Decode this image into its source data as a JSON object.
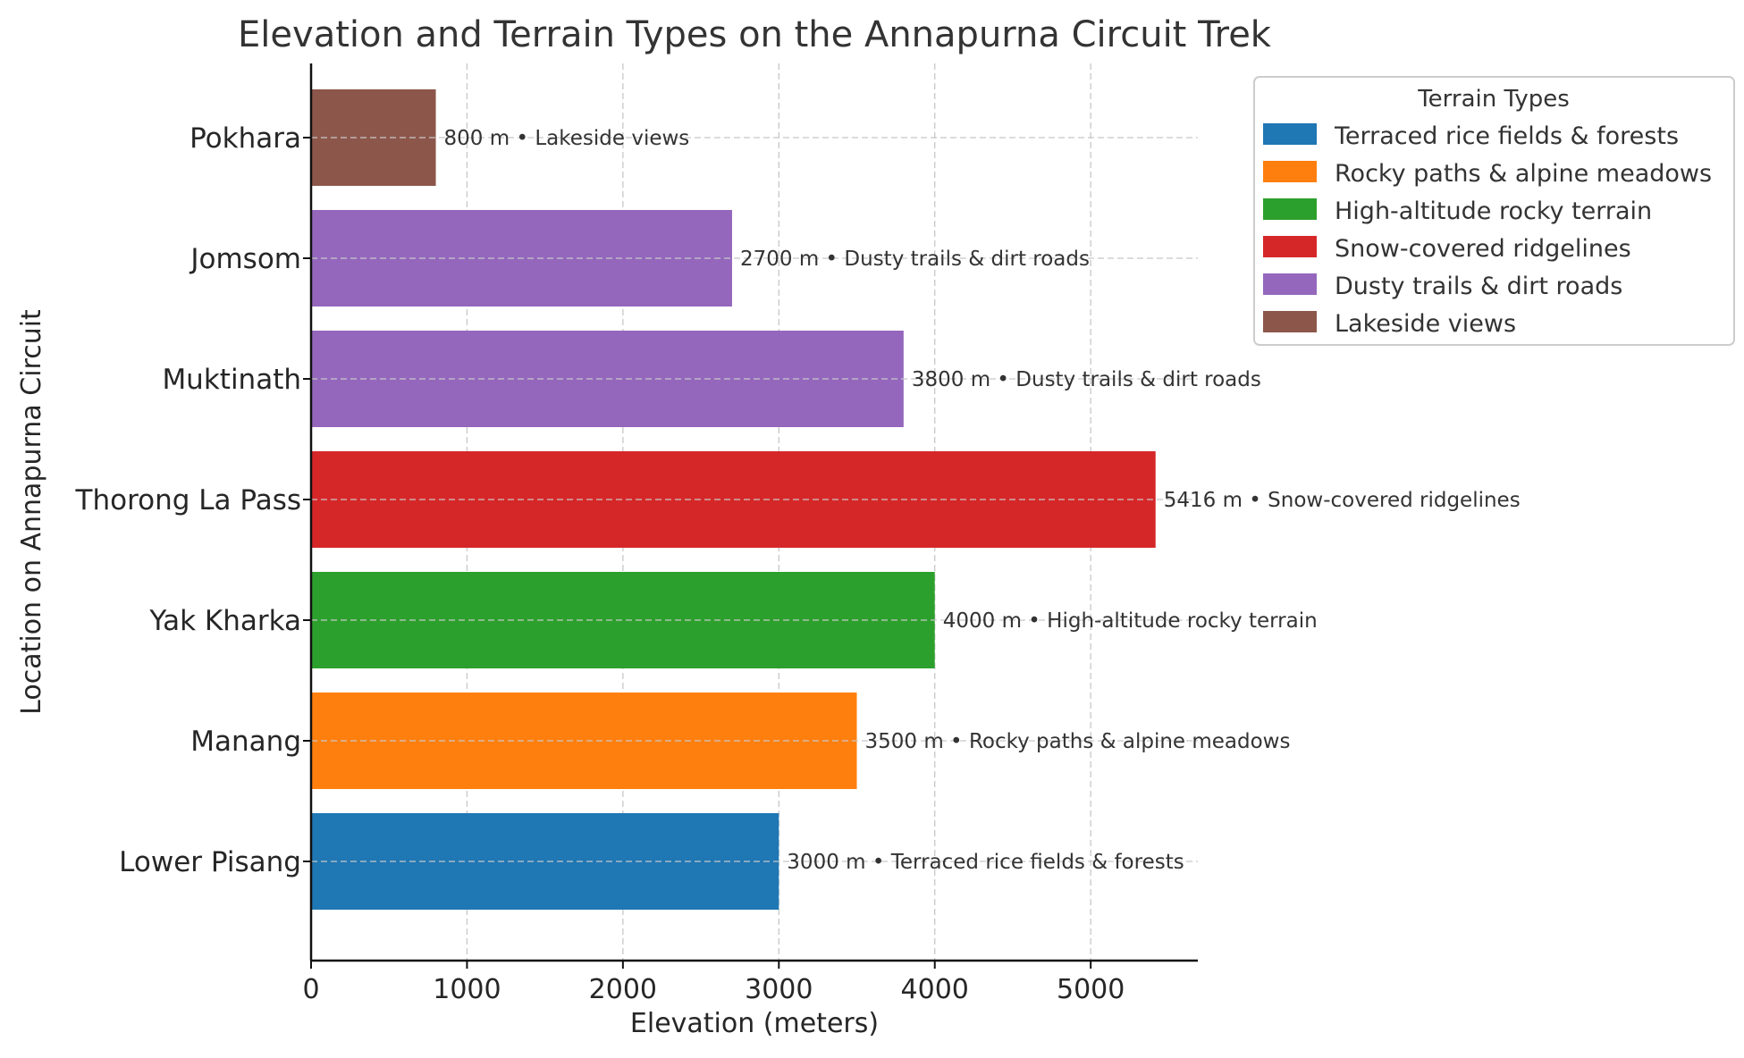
{
  "chart_data": {
    "type": "bar",
    "orientation": "horizontal",
    "title": "Elevation and Terrain Types on the Annapurna Circuit Trek",
    "xlabel": "Elevation (meters)",
    "ylabel": "Location on Annapurna Circuit",
    "xlim": [
      0,
      5687
    ],
    "xticks": [
      "0",
      "1000",
      "2000",
      "3000",
      "4000",
      "5000"
    ],
    "grid": true,
    "legend_title": "Terrain Types",
    "legend_position": "upper-right outside",
    "categories": [
      "Lower Pisang",
      "Manang",
      "Yak Kharka",
      "Thorong La Pass",
      "Muktinath",
      "Jomsom",
      "Pokhara"
    ],
    "values": [
      3000,
      3500,
      4000,
      5416,
      3800,
      2700,
      800
    ],
    "terrain": [
      "Terraced rice fields & forests",
      "Rocky paths & alpine meadows",
      "High-altitude rocky terrain",
      "Snow-covered ridgelines",
      "Dusty trails & dirt roads",
      "Dusty trails & dirt roads",
      "Lakeside views"
    ],
    "bar_labels": [
      "3000 m • Terraced rice fields & forests",
      "3500 m • Rocky paths & alpine meadows",
      "4000 m • High-altitude rocky terrain",
      "5416 m • Snow-covered ridgelines",
      "3800 m • Dusty trails & dirt roads",
      "2700 m • Dusty trails & dirt roads",
      "800 m • Lakeside views"
    ],
    "legend": [
      {
        "label": "Terraced rice fields & forests",
        "color": "#1f77b4"
      },
      {
        "label": "Rocky paths & alpine meadows",
        "color": "#ff7f0e"
      },
      {
        "label": "High-altitude rocky terrain",
        "color": "#2ca02c"
      },
      {
        "label": "Snow-covered ridgelines",
        "color": "#d62728"
      },
      {
        "label": "Dusty trails & dirt roads",
        "color": "#9467bd"
      },
      {
        "label": "Lakeside views",
        "color": "#8c564b"
      }
    ]
  }
}
